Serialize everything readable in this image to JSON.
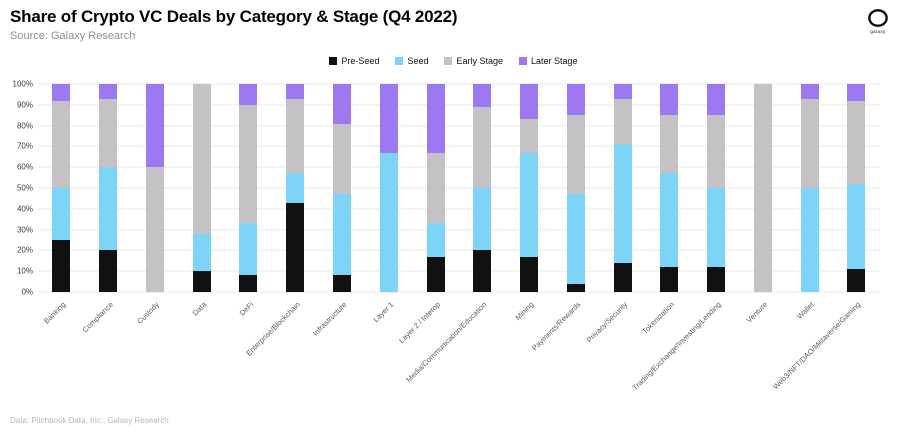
{
  "header": {
    "title": "Share of Crypto VC Deals by Category & Stage (Q4 2022)",
    "subtitle": "Source: Galaxy Research"
  },
  "logo": {
    "label": "galaxy"
  },
  "footer": {
    "credit": "Data: Pitchbook Data, Inc., Galaxy Research"
  },
  "chart_data": {
    "type": "bar",
    "stacked": true,
    "title": "Share of Crypto VC Deals by Category & Stage (Q4 2022)",
    "xlabel": "",
    "ylabel": "",
    "ylim": [
      0,
      100
    ],
    "y_ticks": [
      0,
      10,
      20,
      30,
      40,
      50,
      60,
      70,
      80,
      90,
      100
    ],
    "y_tick_suffix": "%",
    "grid": true,
    "legend_position": "top-center",
    "categories": [
      "Banking",
      "Compliance",
      "Custody",
      "Data",
      "DeFi",
      "Enterprise/Blockchain",
      "Infrastructure",
      "Layer 1",
      "Layer 2 / Interop",
      "Media/Communication/Education",
      "Mining",
      "Payments/Rewards",
      "Privacy/Security",
      "Tokenization",
      "Trading/Exchange/Investing/Lending",
      "Venture",
      "Wallet",
      "Web3/NFT/DAO/Metaverse/Gaming"
    ],
    "series": [
      {
        "name": "Pre-Seed",
        "color": "#111111",
        "values": [
          25,
          20,
          0,
          10,
          8,
          43,
          8,
          0,
          17,
          20,
          17,
          4,
          14,
          12,
          12,
          0,
          0,
          11
        ]
      },
      {
        "name": "Seed",
        "color": "#7ed4f7",
        "values": [
          25,
          40,
          0,
          18,
          25,
          14,
          39,
          67,
          16,
          30,
          50,
          43,
          57,
          45,
          38,
          0,
          50,
          41
        ]
      },
      {
        "name": "Early Stage",
        "color": "#c4c2c4",
        "values": [
          42,
          33,
          60,
          72,
          57,
          36,
          34,
          0,
          34,
          39,
          16,
          38,
          22,
          28,
          35,
          100,
          43,
          40
        ]
      },
      {
        "name": "Later Stage",
        "color": "#9e78f0",
        "values": [
          8,
          7,
          40,
          0,
          10,
          7,
          19,
          33,
          33,
          11,
          17,
          15,
          7,
          15,
          15,
          0,
          7,
          8
        ]
      }
    ]
  }
}
